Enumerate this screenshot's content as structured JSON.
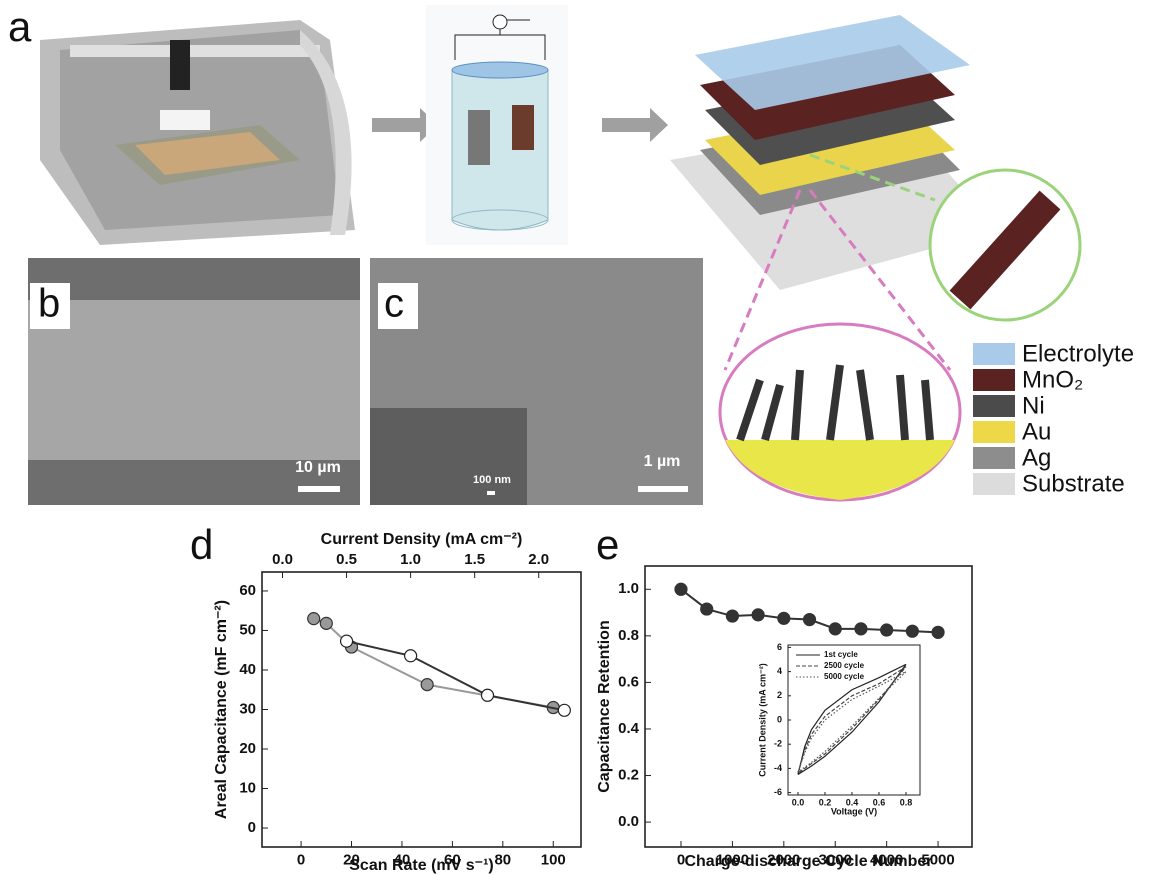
{
  "panel_labels": [
    "a",
    "b",
    "c"
  ],
  "scale_bars": [
    "10 µm",
    "1 µm",
    "100 nm"
  ],
  "legend": [
    {
      "label": "Electrolyte",
      "color": "#a9cbe9"
    },
    {
      "label": "MnO₂",
      "color": "#5b2222"
    },
    {
      "label": "Ni",
      "color": "#4b4b4b"
    },
    {
      "label": "Au",
      "color": "#eed84a"
    },
    {
      "label": "Ag",
      "color": "#8d8d8d"
    },
    {
      "label": "Substrate",
      "color": "#dcdcdc"
    }
  ],
  "chart_data": [
    {
      "type": "scatter",
      "panel_label": "d",
      "x_label": "Scan Rate (mV s⁻¹)",
      "x2_label": "Current Density (mA cm⁻²)",
      "y_label": "Areal Capacitance (mF cm⁻²)",
      "xlim": [
        -15.5,
        111
      ],
      "xticks": [
        0,
        20,
        40,
        60,
        80,
        100
      ],
      "x2lim": [
        -0.16,
        2.33
      ],
      "x2ticks": [
        {
          "value": 0,
          "label": "0.0"
        },
        0.5,
        {
          "value": 1,
          "label": "1.0"
        },
        1.5,
        {
          "value": 2,
          "label": "2.0"
        }
      ],
      "ylim": [
        -4.8,
        64.8
      ],
      "yticks": [
        0,
        10,
        20,
        30,
        40,
        50,
        60
      ],
      "series": [
        {
          "x": [
            5,
            10,
            20,
            50,
            100
          ],
          "values": [
            53,
            51.8,
            45.8,
            36.3,
            30.5
          ],
          "color": "#999999",
          "marker": "filled"
        },
        {
          "axis": "x2",
          "x": [
            0.5,
            1.0,
            1.6,
            2.2
          ],
          "values": [
            47.3,
            43.6,
            33.6,
            29.8
          ],
          "color": "#333333",
          "marker": "open"
        }
      ]
    },
    {
      "type": "scatter",
      "panel_label": "e",
      "x_label": "Charge-discharge Cycle Number",
      "y_label": "Capacitance Retention",
      "xlim": [
        -700,
        5660
      ],
      "xticks": [
        0,
        1000,
        2000,
        3000,
        4000,
        5000
      ],
      "ylim": [
        -0.107,
        1.1
      ],
      "yticks": [
        {
          "value": 0,
          "label": "0.0"
        },
        0.2,
        0.4,
        0.6,
        0.8,
        {
          "value": 1,
          "label": "1.0"
        }
      ],
      "series": [
        {
          "x": [
            0,
            500,
            1000,
            1500,
            2000,
            2500,
            3000,
            3500,
            4000,
            4500,
            5000
          ],
          "values": [
            1.0,
            0.915,
            0.885,
            0.89,
            0.875,
            0.87,
            0.83,
            0.83,
            0.825,
            0.82,
            0.815
          ],
          "color": "#333333",
          "marker": "filled"
        }
      ]
    },
    {
      "type": "line",
      "x_label": "Voltage (V)",
      "y_label": "Current Density (mA cm⁻²)",
      "xlim": [
        -0.074,
        0.904
      ],
      "xticks": [
        {
          "value": 0,
          "label": "0.0"
        },
        0.2,
        0.4,
        0.6,
        0.8
      ],
      "ylim": [
        -6.2,
        6.2
      ],
      "yticks": [
        -6,
        -4,
        -2,
        0,
        2,
        4,
        6
      ],
      "series": [
        {
          "name": "1st cycle",
          "dash": "solid",
          "color": "#222222",
          "x": [
            0,
            0.05,
            0.1,
            0.2,
            0.4,
            0.6,
            0.8,
            0.8,
            0.6,
            0.4,
            0.2,
            0.1,
            0
          ],
          "values": [
            -4.5,
            -2.2,
            -0.8,
            0.8,
            2.5,
            3.5,
            4.6,
            4.6,
            1.5,
            -1.0,
            -3.0,
            -3.8,
            -4.5
          ]
        },
        {
          "name": "2500 cycle",
          "dash": "dashed",
          "color": "#444444",
          "x": [
            0,
            0.05,
            0.1,
            0.2,
            0.4,
            0.6,
            0.8,
            0.8,
            0.6,
            0.4,
            0.2,
            0.1,
            0
          ],
          "values": [
            -4.4,
            -2.5,
            -1.2,
            0.3,
            2.0,
            3.0,
            4.4,
            4.4,
            1.7,
            -0.7,
            -2.8,
            -3.6,
            -4.4
          ]
        },
        {
          "name": "5000 cycle",
          "dash": "dotted",
          "color": "#555555",
          "x": [
            0,
            0.05,
            0.1,
            0.2,
            0.4,
            0.6,
            0.8,
            0.8,
            0.6,
            0.4,
            0.2,
            0.1,
            0
          ],
          "values": [
            -4.3,
            -2.7,
            -1.5,
            0.0,
            1.7,
            2.8,
            4.0,
            4.0,
            1.8,
            -0.5,
            -2.6,
            -3.5,
            -4.3
          ]
        }
      ]
    }
  ]
}
